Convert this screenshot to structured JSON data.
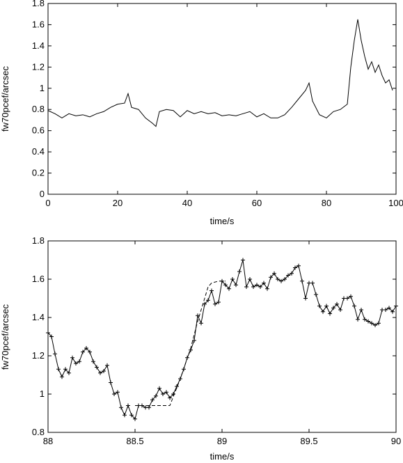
{
  "chart_data": [
    {
      "type": "line",
      "xlabel": "time/s",
      "ylabel": "fw70pcef/arcsec",
      "xlim": [
        0,
        100
      ],
      "ylim": [
        0,
        1.8
      ],
      "xticks": [
        "0",
        "20",
        "40",
        "60",
        "80",
        "100"
      ],
      "yticks": [
        "0",
        "0.2",
        "0.4",
        "0.6",
        "0.8",
        "1",
        "1.2",
        "1.4",
        "1.6",
        "1.8"
      ],
      "grid": false,
      "series": [
        {
          "style": "solid",
          "color": "#000000",
          "x": [
            0,
            2,
            4,
            6,
            8,
            10,
            12,
            14,
            16,
            18,
            20,
            22,
            23,
            24,
            26,
            28,
            30,
            31,
            32,
            34,
            36,
            38,
            40,
            42,
            44,
            46,
            48,
            50,
            52,
            54,
            56,
            58,
            60,
            62,
            64,
            66,
            68,
            70,
            72,
            74,
            75,
            76,
            78,
            80,
            82,
            84,
            86,
            87,
            88,
            89,
            90,
            91,
            92,
            93,
            94,
            95,
            96,
            97,
            98,
            99
          ],
          "y": [
            0.79,
            0.76,
            0.72,
            0.76,
            0.74,
            0.75,
            0.73,
            0.76,
            0.78,
            0.82,
            0.85,
            0.86,
            0.95,
            0.82,
            0.8,
            0.72,
            0.67,
            0.64,
            0.78,
            0.8,
            0.79,
            0.73,
            0.79,
            0.76,
            0.78,
            0.76,
            0.77,
            0.74,
            0.75,
            0.74,
            0.76,
            0.78,
            0.73,
            0.76,
            0.72,
            0.72,
            0.75,
            0.82,
            0.9,
            0.98,
            1.05,
            0.88,
            0.75,
            0.72,
            0.78,
            0.8,
            0.85,
            1.2,
            1.45,
            1.65,
            1.45,
            1.3,
            1.18,
            1.25,
            1.15,
            1.22,
            1.12,
            1.05,
            1.08,
            0.98
          ]
        }
      ]
    },
    {
      "type": "line",
      "xlabel": "time/s",
      "ylabel": "fw70pcef/arcsec",
      "xlim": [
        88,
        90
      ],
      "ylim": [
        0.8,
        1.8
      ],
      "xticks": [
        "88",
        "88.5",
        "89",
        "89.5",
        "90"
      ],
      "yticks": [
        "0.8",
        "1",
        "1.2",
        "1.4",
        "1.6",
        "1.8"
      ],
      "grid": false,
      "series": [
        {
          "style": "solid-markers",
          "marker": "plus",
          "color": "#000000",
          "x": [
            88.0,
            88.02,
            88.04,
            88.06,
            88.08,
            88.1,
            88.12,
            88.14,
            88.16,
            88.18,
            88.2,
            88.22,
            88.24,
            88.26,
            88.28,
            88.3,
            88.32,
            88.34,
            88.36,
            88.38,
            88.4,
            88.42,
            88.44,
            88.46,
            88.48,
            88.5,
            88.52,
            88.54,
            88.56,
            88.58,
            88.6,
            88.62,
            88.64,
            88.66,
            88.68,
            88.7,
            88.72,
            88.74,
            88.76,
            88.78,
            88.8,
            88.82,
            88.84,
            88.86,
            88.88,
            88.9,
            88.92,
            88.94,
            88.96,
            88.98,
            89.0,
            89.02,
            89.04,
            89.06,
            89.08,
            89.1,
            89.12,
            89.14,
            89.16,
            89.18,
            89.2,
            89.22,
            89.24,
            89.26,
            89.28,
            89.3,
            89.32,
            89.34,
            89.36,
            89.38,
            89.4,
            89.42,
            89.44,
            89.46,
            89.48,
            89.5,
            89.52,
            89.54,
            89.56,
            89.58,
            89.6,
            89.62,
            89.64,
            89.66,
            89.68,
            89.7,
            89.72,
            89.74,
            89.76,
            89.78,
            89.8,
            89.82,
            89.84,
            89.86,
            89.88,
            89.9,
            89.92,
            89.94,
            89.96,
            89.98,
            90.0
          ],
          "y": [
            1.32,
            1.3,
            1.21,
            1.13,
            1.09,
            1.13,
            1.11,
            1.19,
            1.16,
            1.17,
            1.22,
            1.24,
            1.22,
            1.17,
            1.14,
            1.11,
            1.12,
            1.15,
            1.06,
            1.0,
            1.01,
            0.93,
            0.89,
            0.94,
            0.89,
            0.87,
            0.94,
            0.94,
            0.93,
            0.93,
            0.97,
            0.99,
            1.03,
            1.0,
            1.01,
            0.98,
            1.0,
            1.04,
            1.08,
            1.13,
            1.19,
            1.23,
            1.28,
            1.41,
            1.37,
            1.47,
            1.49,
            1.54,
            1.47,
            1.48,
            1.59,
            1.57,
            1.55,
            1.6,
            1.57,
            1.64,
            1.7,
            1.56,
            1.6,
            1.56,
            1.57,
            1.56,
            1.58,
            1.55,
            1.61,
            1.63,
            1.6,
            1.59,
            1.6,
            1.62,
            1.63,
            1.66,
            1.67,
            1.59,
            1.5,
            1.58,
            1.58,
            1.52,
            1.46,
            1.43,
            1.46,
            1.42,
            1.45,
            1.47,
            1.44,
            1.5,
            1.5,
            1.51,
            1.46,
            1.39,
            1.44,
            1.39,
            1.38,
            1.37,
            1.36,
            1.37,
            1.44,
            1.44,
            1.45,
            1.43,
            1.46
          ]
        },
        {
          "style": "dashed",
          "color": "#000000",
          "x": [
            88.5,
            88.6,
            88.7,
            88.76,
            88.82,
            88.86,
            88.9,
            88.92,
            88.94,
            88.98,
            89.02
          ],
          "y": [
            0.94,
            0.94,
            0.94,
            1.08,
            1.24,
            1.38,
            1.5,
            1.56,
            1.58,
            1.59,
            1.59
          ]
        }
      ]
    }
  ]
}
